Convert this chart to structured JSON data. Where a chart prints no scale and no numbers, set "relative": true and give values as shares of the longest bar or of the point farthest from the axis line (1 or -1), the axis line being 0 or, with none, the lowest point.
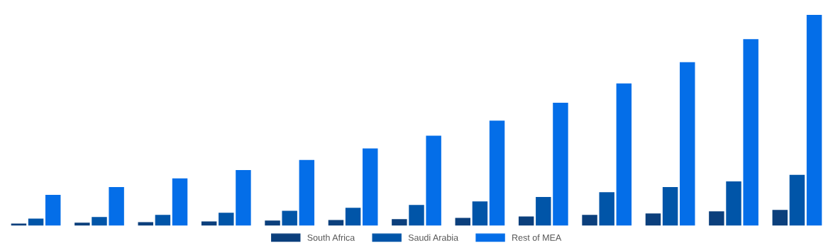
{
  "chart_data": {
    "type": "bar",
    "relative": true,
    "categories": [
      null,
      null,
      null,
      null,
      null,
      null,
      null,
      null,
      null,
      null,
      null,
      null,
      null
    ],
    "series": [
      {
        "name": "South Africa",
        "color": "#0b3f7c",
        "values": [
          0.01,
          0.014,
          0.017,
          0.02,
          0.024,
          0.027,
          0.031,
          0.037,
          0.044,
          0.051,
          0.058,
          0.068,
          0.075
        ]
      },
      {
        "name": "Saudi Arabia",
        "color": "#0155a8",
        "values": [
          0.034,
          0.041,
          0.051,
          0.061,
          0.071,
          0.085,
          0.098,
          0.115,
          0.136,
          0.159,
          0.183,
          0.21,
          0.241
        ]
      },
      {
        "name": "Rest of MEA",
        "color": "#046ee8",
        "values": [
          0.146,
          0.183,
          0.224,
          0.264,
          0.312,
          0.366,
          0.427,
          0.498,
          0.583,
          0.675,
          0.776,
          0.885,
          1
        ]
      }
    ],
    "legend": "bottom",
    "grid": false
  }
}
